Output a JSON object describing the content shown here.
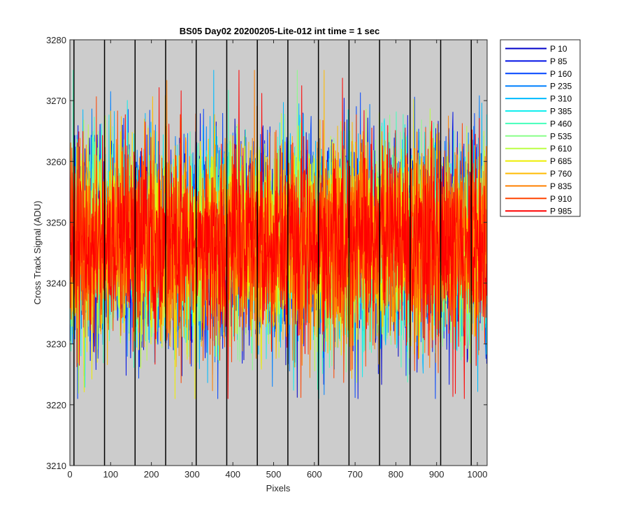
{
  "chart_data": {
    "type": "line",
    "title": "BS05 Day02 20200205-Lite-012 int time = 1 sec",
    "xlabel": "Pixels",
    "ylabel": "Cross Track Signal (ADU)",
    "xlim": [
      0,
      1024
    ],
    "ylim": [
      3210,
      3280
    ],
    "x_ticks": [
      0,
      100,
      200,
      300,
      400,
      500,
      600,
      700,
      800,
      900,
      1000
    ],
    "y_ticks": [
      3210,
      3220,
      3230,
      3240,
      3250,
      3260,
      3270,
      3280
    ],
    "vertical_lines_x": [
      10,
      85,
      160,
      235,
      310,
      385,
      460,
      535,
      610,
      685,
      760,
      835,
      910,
      985
    ],
    "grid": false,
    "background": "#cccccc",
    "legend_position": "outside-top-right",
    "series_count": 14,
    "series_points_per": 1024,
    "series_mean": 3247,
    "series_noise_std": 8,
    "series": [
      {
        "name": "P 10",
        "color": "#0000c8"
      },
      {
        "name": "P 85",
        "color": "#0011e6"
      },
      {
        "name": "P 160",
        "color": "#0044ff"
      },
      {
        "name": "P 235",
        "color": "#0080ff"
      },
      {
        "name": "P 310",
        "color": "#00bbff"
      },
      {
        "name": "P 385",
        "color": "#11eeee"
      },
      {
        "name": "P 460",
        "color": "#44ffbb"
      },
      {
        "name": "P 535",
        "color": "#88ff88"
      },
      {
        "name": "P 610",
        "color": "#bbff44"
      },
      {
        "name": "P 685",
        "color": "#eeee00"
      },
      {
        "name": "P 760",
        "color": "#ffbb00"
      },
      {
        "name": "P 835",
        "color": "#ff8000"
      },
      {
        "name": "P 910",
        "color": "#ff4400"
      },
      {
        "name": "P 985",
        "color": "#ff0000"
      }
    ]
  }
}
